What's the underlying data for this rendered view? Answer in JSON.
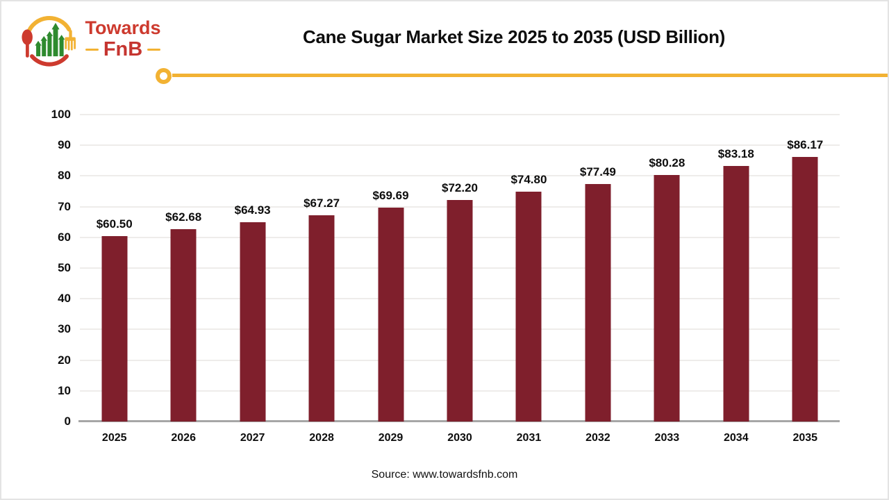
{
  "header": {
    "logo": {
      "line1": "Towards",
      "line2": "FnB",
      "red": "#cd3a2e",
      "yellow": "#f2b233",
      "green": "#2e8a2e"
    },
    "title": "Cane Sugar Market Size 2025 to 2035 (USD Billion)",
    "divider_color": "#f2b233"
  },
  "chart_data": {
    "type": "bar",
    "title": "Cane Sugar Market Size 2025 to 2035 (USD Billion)",
    "categories": [
      "2025",
      "2026",
      "2027",
      "2028",
      "2029",
      "2030",
      "2031",
      "2032",
      "2033",
      "2034",
      "2035"
    ],
    "values": [
      60.5,
      62.68,
      64.93,
      67.27,
      69.69,
      72.2,
      74.8,
      77.49,
      80.28,
      83.18,
      86.17
    ],
    "labels": [
      "$60.50",
      "$62.68",
      "$64.93",
      "$67.27",
      "$69.69",
      "$72.20",
      "$74.80",
      "$77.49",
      "$80.28",
      "$83.18",
      "$86.17"
    ],
    "unit": "USD Billion",
    "xlabel": "",
    "ylabel": "",
    "ylim": [
      0,
      100
    ],
    "yticks": [
      0,
      10,
      20,
      30,
      40,
      50,
      60,
      70,
      80,
      90,
      100
    ],
    "grid": true,
    "legend": false,
    "bar_color": "#7f1f2c",
    "gridline_color": "#eeecea",
    "axis_color": "#a6a6a6"
  },
  "footer": {
    "source": "Source: www.towardsfnb.com"
  }
}
